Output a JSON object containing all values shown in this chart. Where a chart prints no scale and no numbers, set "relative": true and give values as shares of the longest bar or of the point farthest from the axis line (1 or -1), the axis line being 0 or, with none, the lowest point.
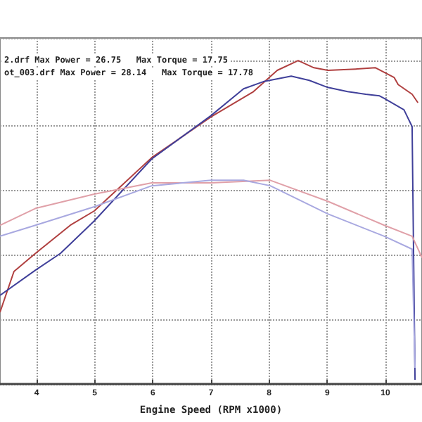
{
  "chart_data": {
    "type": "line",
    "relative": true,
    "xlabel": "Engine Speed (RPM x1000)",
    "xlim": [
      3.37,
      10.63
    ],
    "xticks": [
      4,
      5,
      6,
      7,
      8,
      9,
      10
    ],
    "grid": true,
    "marker": "none",
    "line_style": "solid",
    "annotations": [
      "2.drf Max Power = 26.75   Max Torque = 17.75",
      "ot_003.drf Max Power = 28.14   Max Torque = 17.78"
    ],
    "series": [
      {
        "color": "#b04040",
        "x": [
          3.37,
          3.61,
          3.98,
          4.58,
          4.99,
          5.98,
          7.0,
          7.73,
          8.14,
          8.5,
          8.77,
          9.01,
          9.49,
          9.83,
          10.15,
          10.22,
          10.46,
          10.56
        ],
        "values": [
          0.222,
          0.348,
          0.404,
          0.491,
          0.535,
          0.7,
          0.826,
          0.904,
          0.97,
          1.0,
          0.978,
          0.97,
          0.974,
          0.978,
          0.948,
          0.926,
          0.896,
          0.87
        ]
      },
      {
        "color": "#40409a",
        "x": [
          3.37,
          3.98,
          4.41,
          4.99,
          5.98,
          7.0,
          7.56,
          7.9,
          8.38,
          8.69,
          9.01,
          9.35,
          9.66,
          9.9,
          9.98,
          10.32,
          10.46,
          10.51
        ],
        "values": [
          0.274,
          0.352,
          0.404,
          0.504,
          0.696,
          0.83,
          0.913,
          0.935,
          0.952,
          0.939,
          0.917,
          0.904,
          0.896,
          0.891,
          0.883,
          0.848,
          0.796,
          0.013
        ]
      },
      {
        "color": "#e0a0a8",
        "x": [
          3.37,
          3.98,
          4.99,
          5.98,
          7.0,
          8.02,
          9.01,
          9.98,
          10.46,
          10.63
        ],
        "values": [
          0.491,
          0.543,
          0.587,
          0.622,
          0.622,
          0.63,
          0.565,
          0.491,
          0.457,
          0.391
        ]
      },
      {
        "color": "#a8a8e0",
        "x": [
          3.37,
          3.98,
          4.99,
          5.98,
          7.0,
          7.56,
          8.02,
          9.01,
          9.98,
          10.46,
          10.51
        ],
        "values": [
          0.457,
          0.491,
          0.548,
          0.613,
          0.63,
          0.63,
          0.613,
          0.526,
          0.457,
          0.417,
          0.05
        ]
      }
    ]
  }
}
